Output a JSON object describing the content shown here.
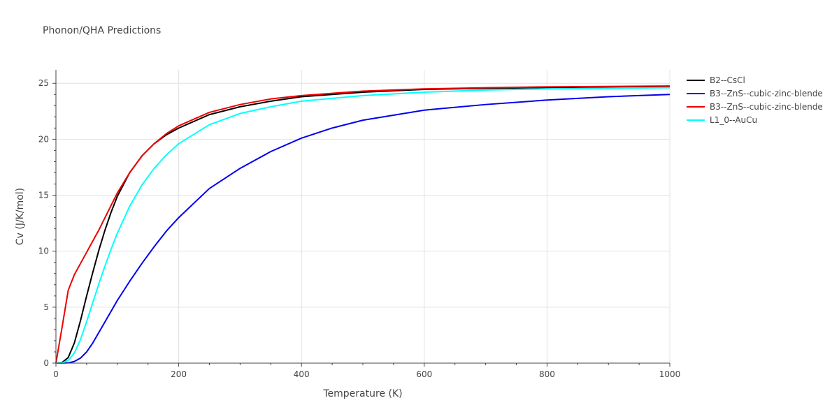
{
  "chart_data": {
    "type": "line",
    "title": "Phonon/QHA Predictions",
    "xlabel": "Temperature (K)",
    "ylabel": "Cv (J/K/mol)",
    "xlim": [
      0,
      1000
    ],
    "ylim": [
      0,
      26.2
    ],
    "xticks": [
      0,
      200,
      400,
      600,
      800,
      1000
    ],
    "yticks": [
      0,
      5,
      10,
      15,
      20,
      25
    ],
    "grid": true,
    "legend_position": "top-right, outside plot",
    "series": [
      {
        "name": "B2--CsCl",
        "color": "#000000",
        "x": [
          0,
          10,
          20,
          30,
          40,
          50,
          60,
          70,
          80,
          90,
          100,
          120,
          140,
          160,
          180,
          200,
          250,
          300,
          350,
          400,
          500,
          600,
          700,
          800,
          900,
          1000
        ],
        "y": [
          0,
          0.05,
          0.5,
          1.8,
          3.8,
          6.0,
          8.1,
          10.1,
          11.9,
          13.5,
          14.9,
          17.0,
          18.5,
          19.6,
          20.4,
          21.0,
          22.2,
          22.9,
          23.4,
          23.8,
          24.2,
          24.45,
          24.55,
          24.62,
          24.68,
          24.72
        ]
      },
      {
        "name": "B3--ZnS--cubic-zinc-blende",
        "color": "#0000ee",
        "x": [
          0,
          20,
          30,
          40,
          50,
          60,
          80,
          100,
          120,
          140,
          160,
          180,
          200,
          250,
          300,
          350,
          400,
          450,
          500,
          600,
          700,
          800,
          900,
          1000
        ],
        "y": [
          0,
          0.02,
          0.15,
          0.45,
          1.0,
          1.8,
          3.7,
          5.6,
          7.3,
          8.9,
          10.4,
          11.8,
          13.0,
          15.6,
          17.4,
          18.9,
          20.1,
          21.0,
          21.7,
          22.6,
          23.1,
          23.5,
          23.8,
          24.0
        ]
      },
      {
        "name": "B3--ZnS--cubic-zinc-blende",
        "color": "#ee0000",
        "x": [
          0,
          10,
          20,
          30,
          40,
          50,
          60,
          70,
          80,
          100,
          120,
          140,
          160,
          180,
          200,
          250,
          300,
          350,
          400,
          500,
          600,
          700,
          800,
          900,
          1000
        ],
        "y": [
          0,
          3.2,
          6.5,
          7.9,
          8.9,
          9.9,
          10.9,
          11.9,
          13.0,
          15.2,
          17.0,
          18.5,
          19.6,
          20.5,
          21.2,
          22.4,
          23.1,
          23.6,
          23.9,
          24.3,
          24.5,
          24.6,
          24.68,
          24.72,
          24.76
        ]
      },
      {
        "name": "L1_0--AuCu",
        "color": "#00ffff",
        "x": [
          0,
          10,
          20,
          30,
          40,
          50,
          60,
          70,
          80,
          90,
          100,
          120,
          140,
          160,
          180,
          200,
          250,
          300,
          350,
          400,
          500,
          600,
          700,
          800,
          900,
          1000
        ],
        "y": [
          0,
          0.02,
          0.25,
          0.9,
          2.1,
          3.7,
          5.4,
          7.1,
          8.7,
          10.2,
          11.6,
          14.0,
          15.9,
          17.4,
          18.6,
          19.6,
          21.3,
          22.3,
          22.9,
          23.4,
          23.9,
          24.2,
          24.4,
          24.5,
          24.55,
          24.6
        ]
      }
    ]
  }
}
